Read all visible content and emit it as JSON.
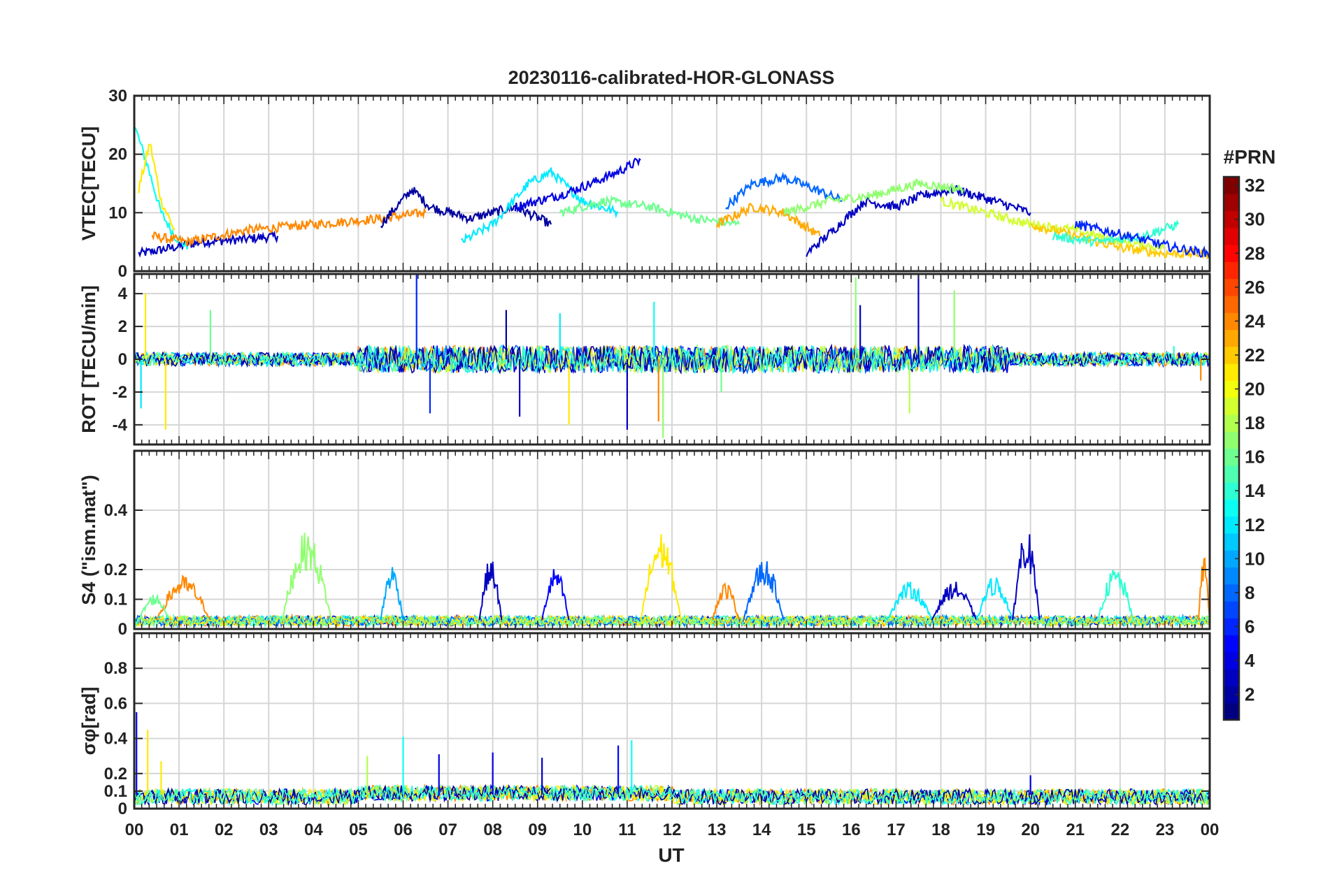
{
  "chart_data": [
    {
      "type": "line",
      "title": "20230116-calibrated-HOR-GLONASS",
      "ylabel": "VTEC[TECU]",
      "ylim": [
        0,
        30
      ],
      "yticks": [
        0,
        10,
        20,
        30
      ],
      "xlim": [
        0,
        24
      ],
      "grid": true,
      "series": [
        {
          "prn": 3,
          "x": [
            0.1,
            0.5,
            1.5,
            2.5,
            3.2
          ],
          "y": [
            3,
            3.5,
            5,
            5.5,
            6
          ]
        },
        {
          "prn": 13,
          "x": [
            0,
            0.3,
            0.6,
            0.9,
            1.2
          ],
          "y": [
            25,
            18,
            10,
            6,
            4
          ]
        },
        {
          "prn": 21,
          "x": [
            0.1,
            0.35,
            0.6,
            0.9
          ],
          "y": [
            14,
            22,
            12,
            7
          ]
        },
        {
          "prn": 24,
          "x": [
            0.4,
            1.2,
            2.5,
            4,
            5.5,
            6.5
          ],
          "y": [
            6,
            5,
            7,
            8,
            9,
            10
          ]
        },
        {
          "prn": 2,
          "x": [
            5.5,
            6.2,
            6.6,
            7.5,
            8.5,
            9.3
          ],
          "y": [
            8,
            14,
            11,
            9,
            11,
            8
          ]
        },
        {
          "prn": 12,
          "x": [
            7.3,
            8,
            8.8,
            9.3,
            10,
            10.8
          ],
          "y": [
            5,
            8,
            15,
            17,
            12,
            10
          ]
        },
        {
          "prn": 4,
          "x": [
            8.5,
            9.5,
            10.2,
            10.8,
            11.3
          ],
          "y": [
            11,
            13,
            15,
            17,
            19
          ]
        },
        {
          "prn": 16,
          "x": [
            9.5,
            10.5,
            11.5,
            12.5,
            13.5
          ],
          "y": [
            10,
            12,
            11,
            9,
            8
          ]
        },
        {
          "prn": 8,
          "x": [
            13.2,
            13.8,
            14.5,
            15.2,
            15.8
          ],
          "y": [
            11,
            15,
            16,
            14,
            12
          ]
        },
        {
          "prn": 23,
          "x": [
            13,
            13.8,
            14.5,
            15.3
          ],
          "y": [
            8,
            11,
            10,
            6
          ]
        },
        {
          "prn": 3,
          "x": [
            15,
            15.6,
            16.3,
            17,
            17.6,
            18.3,
            19.2,
            20
          ],
          "y": [
            3,
            7,
            12,
            11,
            13,
            14,
            12,
            10
          ]
        },
        {
          "prn": 17,
          "x": [
            14.5,
            15.5,
            16.5,
            17.5,
            18.5
          ],
          "y": [
            10,
            12,
            13,
            15,
            14
          ]
        },
        {
          "prn": 19,
          "x": [
            18,
            19,
            20,
            21,
            22,
            23
          ],
          "y": [
            12,
            10,
            8,
            7,
            5,
            4
          ]
        },
        {
          "prn": 22,
          "x": [
            20,
            21,
            22,
            23,
            24
          ],
          "y": [
            8,
            6,
            4,
            3,
            3
          ]
        },
        {
          "prn": 14,
          "x": [
            20.5,
            21.5,
            22.5,
            23.3
          ],
          "y": [
            6,
            5,
            6,
            8
          ]
        },
        {
          "prn": 6,
          "x": [
            21,
            22.2,
            23.2,
            24
          ],
          "y": [
            8,
            6,
            4,
            3
          ]
        }
      ]
    },
    {
      "type": "line",
      "ylabel": "ROT [TECU/min]",
      "ylim": [
        -5.2,
        5.2
      ],
      "yticks": [
        -4,
        -2,
        0,
        2,
        4
      ],
      "xlim": [
        0,
        24
      ],
      "grid": true,
      "baseline_range": [
        -0.6,
        0.6
      ],
      "spikes": [
        {
          "prn": 21,
          "x": 0.25,
          "y": 4.0
        },
        {
          "prn": 21,
          "x": 0.7,
          "y": -4.3
        },
        {
          "prn": 12,
          "x": 0.15,
          "y": -3.0
        },
        {
          "prn": 16,
          "x": 1.7,
          "y": 3.0
        },
        {
          "prn": 6,
          "x": 6.3,
          "y": 5.3
        },
        {
          "prn": 6,
          "x": 6.6,
          "y": -3.3
        },
        {
          "prn": 2,
          "x": 8.3,
          "y": 3.0
        },
        {
          "prn": 3,
          "x": 8.6,
          "y": -3.5
        },
        {
          "prn": 12,
          "x": 9.5,
          "y": 2.8
        },
        {
          "prn": 21,
          "x": 9.7,
          "y": -4.0
        },
        {
          "prn": 3,
          "x": 11.0,
          "y": -4.3
        },
        {
          "prn": 13,
          "x": 11.6,
          "y": 3.5
        },
        {
          "prn": 24,
          "x": 11.7,
          "y": -3.8
        },
        {
          "prn": 17,
          "x": 11.8,
          "y": -4.8
        },
        {
          "prn": 16,
          "x": 13.1,
          "y": -2.0
        },
        {
          "prn": 17,
          "x": 16.1,
          "y": 5.0
        },
        {
          "prn": 3,
          "x": 16.2,
          "y": 3.3
        },
        {
          "prn": 3,
          "x": 17.5,
          "y": 5.2
        },
        {
          "prn": 18,
          "x": 17.3,
          "y": -3.3
        },
        {
          "prn": 17,
          "x": 18.3,
          "y": 4.2
        },
        {
          "prn": 14,
          "x": 23.2,
          "y": 0.8
        },
        {
          "prn": 24,
          "x": 23.8,
          "y": -1.3
        }
      ]
    },
    {
      "type": "line",
      "ylabel": "S4 (\"ism.mat\")",
      "ylim": [
        0,
        0.6
      ],
      "yticks": [
        0,
        0.1,
        0.2,
        0.4
      ],
      "xlim": [
        0,
        24
      ],
      "grid": true,
      "bursts": [
        {
          "prn": 24,
          "x": [
            0.5,
            1.7
          ],
          "peak": 0.18
        },
        {
          "prn": 16,
          "x": [
            0.1,
            0.8
          ],
          "peak": 0.12
        },
        {
          "prn": 17,
          "x": [
            3.3,
            4.4
          ],
          "peak": 0.33
        },
        {
          "prn": 10,
          "x": [
            5.5,
            6.0
          ],
          "peak": 0.22
        },
        {
          "prn": 3,
          "x": [
            7.7,
            8.2
          ],
          "peak": 0.24
        },
        {
          "prn": 5,
          "x": [
            9.1,
            9.7
          ],
          "peak": 0.21
        },
        {
          "prn": 21,
          "x": [
            11.3,
            12.2
          ],
          "peak": 0.33
        },
        {
          "prn": 8,
          "x": [
            13.6,
            14.5
          ],
          "peak": 0.24
        },
        {
          "prn": 24,
          "x": [
            12.9,
            13.5
          ],
          "peak": 0.16
        },
        {
          "prn": 12,
          "x": [
            16.8,
            17.8
          ],
          "peak": 0.16
        },
        {
          "prn": 3,
          "x": [
            17.8,
            18.8
          ],
          "peak": 0.16
        },
        {
          "prn": 12,
          "x": [
            18.8,
            19.6
          ],
          "peak": 0.18
        },
        {
          "prn": 3,
          "x": [
            19.6,
            20.2
          ],
          "peak": 0.35
        },
        {
          "prn": 14,
          "x": [
            21.5,
            22.3
          ],
          "peak": 0.21
        },
        {
          "prn": 24,
          "x": [
            23.75,
            24
          ],
          "peak": 0.26
        }
      ]
    },
    {
      "type": "line",
      "ylabel": "σφ[rad]",
      "ylim": [
        0,
        1.0
      ],
      "yticks": [
        0,
        0.1,
        0.2,
        0.4,
        0.6,
        0.8
      ],
      "xlim": [
        0,
        24
      ],
      "grid": true,
      "spikes": [
        {
          "prn": 5,
          "x": 0.05,
          "y": 0.55
        },
        {
          "prn": 21,
          "x": 0.3,
          "y": 0.45
        },
        {
          "prn": 21,
          "x": 0.6,
          "y": 0.27
        },
        {
          "prn": 18,
          "x": 5.2,
          "y": 0.3
        },
        {
          "prn": 13,
          "x": 6.0,
          "y": 0.41
        },
        {
          "prn": 4,
          "x": 6.8,
          "y": 0.31
        },
        {
          "prn": 4,
          "x": 8.0,
          "y": 0.32
        },
        {
          "prn": 3,
          "x": 9.1,
          "y": 0.29
        },
        {
          "prn": 5,
          "x": 10.8,
          "y": 0.36
        },
        {
          "prn": 13,
          "x": 11.1,
          "y": 0.39
        },
        {
          "prn": 4,
          "x": 20.0,
          "y": 0.19
        }
      ]
    }
  ],
  "x_axis": {
    "label": "UT",
    "ticks": [
      "00",
      "01",
      "02",
      "03",
      "04",
      "05",
      "06",
      "07",
      "08",
      "09",
      "10",
      "11",
      "12",
      "13",
      "14",
      "15",
      "16",
      "17",
      "18",
      "19",
      "20",
      "21",
      "22",
      "23",
      "00"
    ]
  },
  "colorbar": {
    "title": "#PRN",
    "colormap": "jet",
    "range": [
      1,
      32
    ],
    "ticks": [
      2,
      4,
      6,
      8,
      10,
      12,
      14,
      16,
      18,
      20,
      22,
      24,
      26,
      28,
      30,
      32
    ]
  }
}
